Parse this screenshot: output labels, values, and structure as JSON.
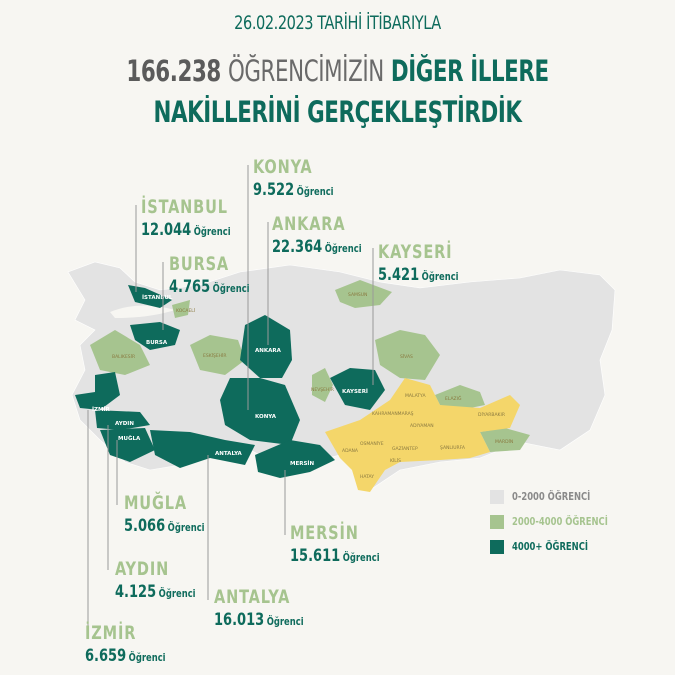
{
  "header": {
    "date_line": "26.02.2023 TARİHİ İTİBARIYLA",
    "total": "166.238",
    "line2_mid": "ÖĞRENCİMİZİN",
    "line2_end": "DİĞER İLLERE",
    "line3": "NAKİLLERİNİ GERÇEKLEŞTİRDİK"
  },
  "unit": "Öğrenci",
  "cities": [
    {
      "name": "KONYA",
      "count": "9.522"
    },
    {
      "name": "İSTANBUL",
      "count": "12.044"
    },
    {
      "name": "ANKARA",
      "count": "22.364"
    },
    {
      "name": "BURSA",
      "count": "4.765"
    },
    {
      "name": "KAYSERİ",
      "count": "5.421"
    },
    {
      "name": "MUĞLA",
      "count": "5.066"
    },
    {
      "name": "MERSİN",
      "count": "15.611"
    },
    {
      "name": "AYDIN",
      "count": "4.125"
    },
    {
      "name": "ANTALYA",
      "count": "16.013"
    },
    {
      "name": "İZMİR",
      "count": "6.659"
    }
  ],
  "map_labels": {
    "istanbul": "İSTANBUL",
    "bursa": "BURSA",
    "ankara": "ANKARA",
    "konya": "KONYA",
    "kayseri": "KAYSERİ",
    "izmir": "İZMİR",
    "aydin": "AYDIN",
    "mugla": "MUĞLA",
    "antalya": "ANTALYA",
    "mersin": "MERSİN",
    "kocaeli": "KOCAELİ",
    "balikesir": "BALIKESİR",
    "eskisehir": "ESKİŞEHİR",
    "nevsehir": "NEVŞEHİR",
    "samsun": "SAMSUN",
    "sivas": "SİVAS",
    "elazig": "ELAZIĞ",
    "malatya": "MALATYA",
    "kahramanmaras": "KAHRAMANMARAŞ",
    "adiyaman": "ADIYAMAN",
    "diyarbakir": "DİYARBAKIR",
    "mardin": "MARDİN",
    "osmaniye": "OSMANİYE",
    "adana": "ADANA",
    "gaziantep": "GAZİANTEP",
    "sanliurfa": "ŞANLIURFA",
    "kilis": "KİLİS",
    "hatay": "HATAY"
  },
  "legend": [
    {
      "label": "0-2000 ÖĞRENCİ",
      "color": "#e3e3e3",
      "text_color": "#8a8a8a"
    },
    {
      "label": "2000-4000 ÖĞRENCİ",
      "color": "#a6c48f",
      "text_color": "#a6c48f"
    },
    {
      "label": "4000+ ÖĞRENCİ",
      "color": "#0e6b5c",
      "text_color": "#0e6b5c"
    }
  ],
  "colors": {
    "background": "#f7f6f2",
    "dark_green": "#0e6b5c",
    "light_green": "#a6c48f",
    "yellow_affected": "#f4d66a",
    "gray": "#e3e3e3",
    "title_gray": "#5b5b5b"
  }
}
